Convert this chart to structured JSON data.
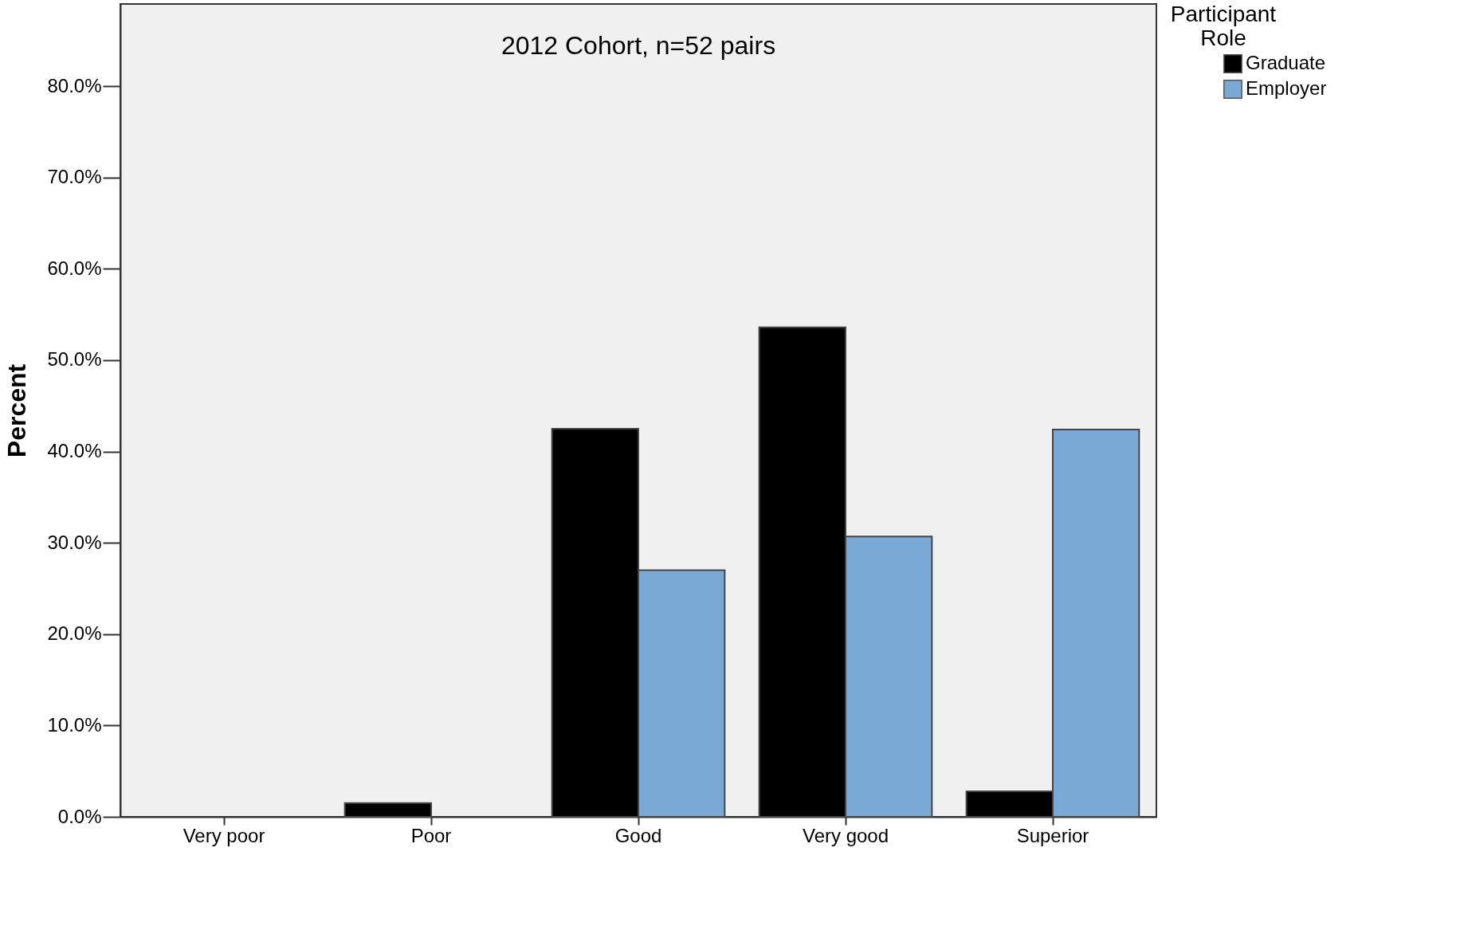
{
  "chart_data": {
    "type": "bar",
    "title": "2012 Cohort, n=52 pairs",
    "ylabel": "Percent",
    "legend_title": "Participant Role",
    "categories": [
      "Very poor",
      "Poor",
      "Good",
      "Very good",
      "Superior"
    ],
    "series": [
      {
        "name": "Graduate",
        "color": "#000000",
        "values": [
          0,
          1.5,
          42.5,
          53.6,
          2.8
        ]
      },
      {
        "name": "Employer",
        "color": "#7ba9d6",
        "values": [
          0,
          0,
          27.0,
          30.7,
          42.4
        ]
      }
    ],
    "ylim": [
      0,
      89
    ],
    "yticks": [
      {
        "value": 0,
        "label": "0.0%"
      },
      {
        "value": 10,
        "label": "10.0%"
      },
      {
        "value": 20,
        "label": "20.0%"
      },
      {
        "value": 30,
        "label": "30.0%"
      },
      {
        "value": 40,
        "label": "40.0%"
      },
      {
        "value": 50,
        "label": "50.0%"
      },
      {
        "value": 60,
        "label": "60.0%"
      },
      {
        "value": 70,
        "label": "70.0%"
      },
      {
        "value": 80,
        "label": "80.0%"
      }
    ],
    "grid": false,
    "legend": "top right"
  }
}
